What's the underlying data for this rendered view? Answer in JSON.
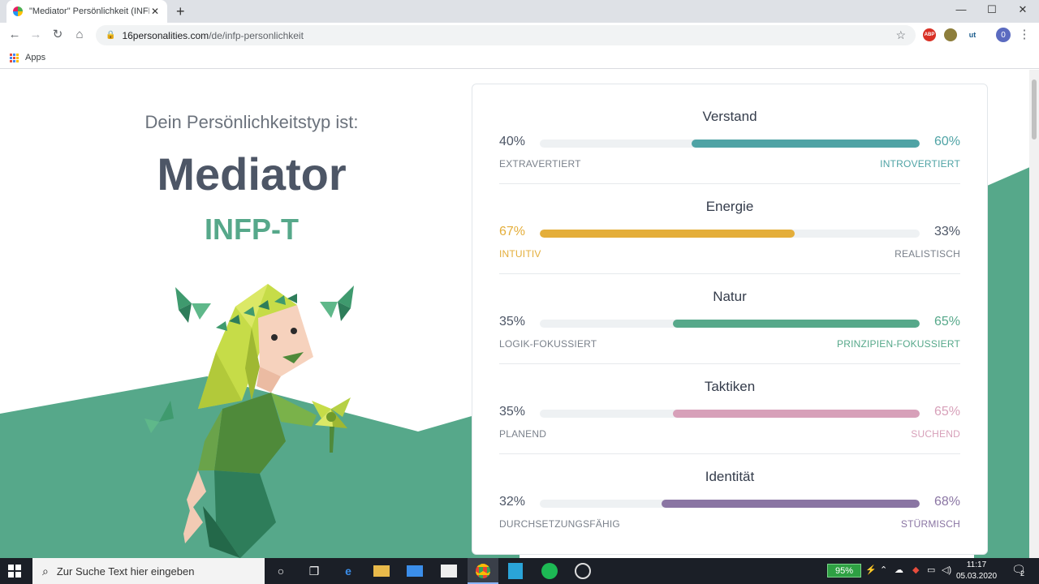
{
  "browser": {
    "tab_title": "\"Mediator\" Persönlichkeit (INFP-A",
    "tab_close": "✕",
    "new_tab": "+",
    "url_host": "16personalities.com",
    "url_path": "/de/infp-personlichkeit",
    "bookmarks_apps": "Apps",
    "profile_initial": "0"
  },
  "page": {
    "intro": "Dein Persönlichkeitstyp ist:",
    "type_name": "Mediator",
    "type_code": "INFP-T"
  },
  "traits": [
    {
      "name": "Verstand",
      "left_pct": "40%",
      "right_pct": "60%",
      "left_label": "EXTRAVERTIERT",
      "right_label": "INTROVERTIERT",
      "dominant": "right",
      "value": 60,
      "color": "#4fa3a5"
    },
    {
      "name": "Energie",
      "left_pct": "67%",
      "right_pct": "33%",
      "left_label": "INTUITIV",
      "right_label": "REALISTISCH",
      "dominant": "left",
      "value": 67,
      "color": "#e4ae3a"
    },
    {
      "name": "Natur",
      "left_pct": "35%",
      "right_pct": "65%",
      "left_label": "LOGIK-FOKUSSIERT",
      "right_label": "PRINZIPIEN-FOKUSSIERT",
      "dominant": "right",
      "value": 65,
      "color": "#56a88a"
    },
    {
      "name": "Taktiken",
      "left_pct": "35%",
      "right_pct": "65%",
      "left_label": "PLANEND",
      "right_label": "SUCHEND",
      "dominant": "right",
      "value": 65,
      "color": "#d7a0b9"
    },
    {
      "name": "Identität",
      "left_pct": "32%",
      "right_pct": "68%",
      "left_label": "DURCHSETZUNGSFÄHIG",
      "right_label": "STÜRMISCH",
      "dominant": "right",
      "value": 68,
      "color": "#8a75a3"
    }
  ],
  "taskbar": {
    "search_placeholder": "Zur Suche Text hier eingeben",
    "battery": "95%",
    "time": "11:17",
    "date": "05.03.2020",
    "notifications": "2"
  }
}
